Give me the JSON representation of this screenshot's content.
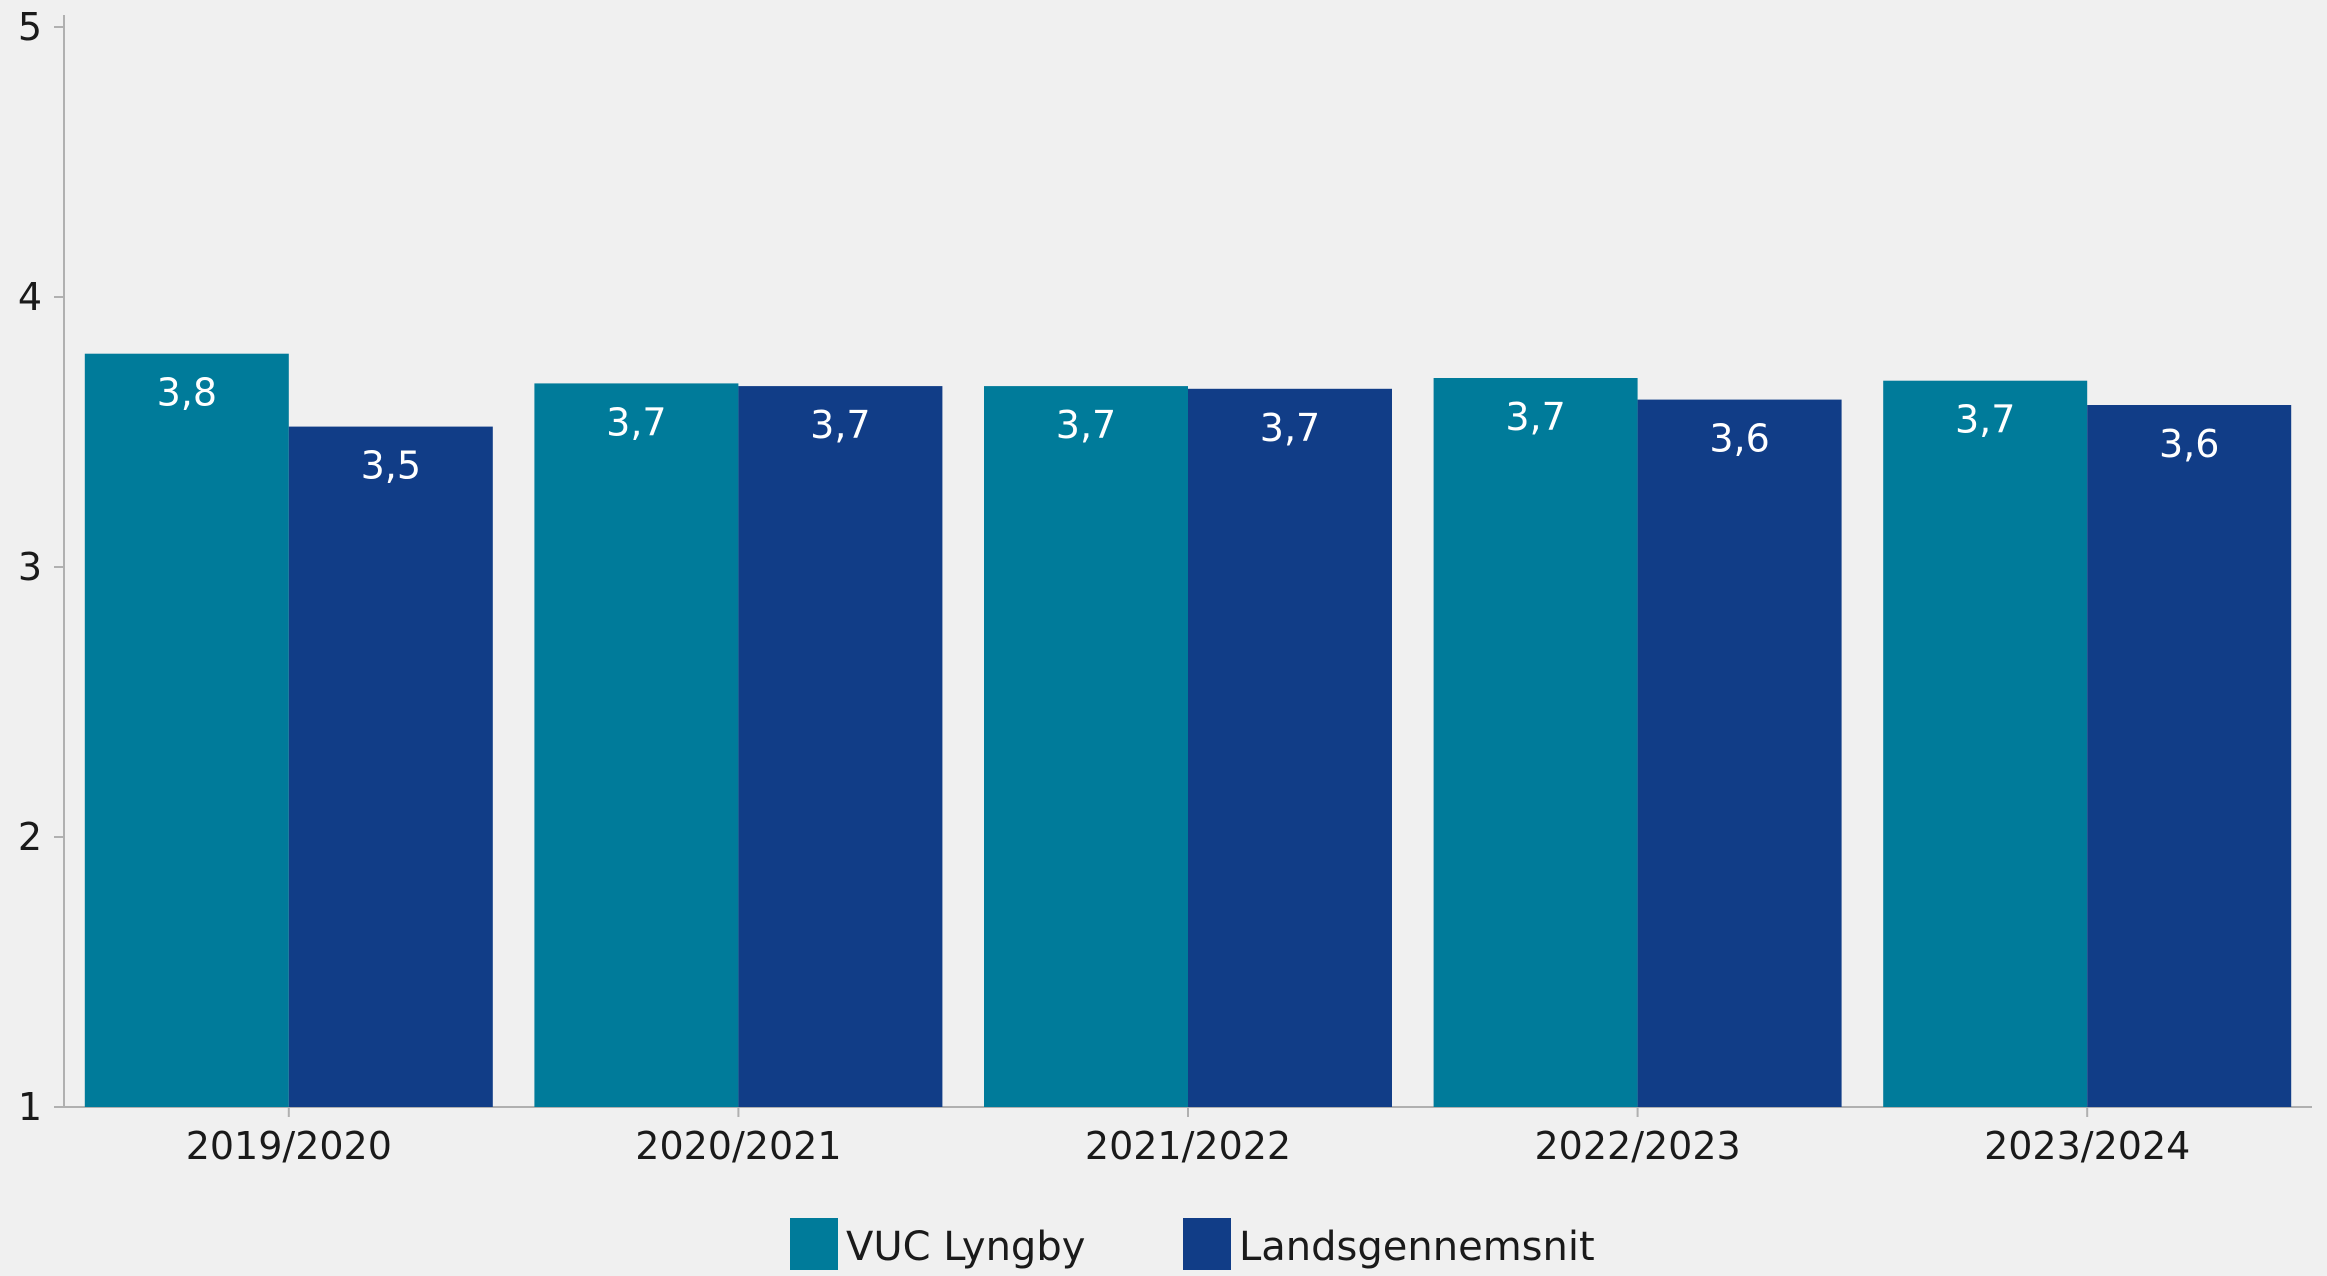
{
  "chart_data": {
    "type": "bar",
    "categories": [
      "2019/2020",
      "2020/2021",
      "2021/2022",
      "2022/2023",
      "2023/2024"
    ],
    "series": [
      {
        "name": "VUC Lyngby",
        "color": "#007b9a",
        "values": [
          3.79,
          3.68,
          3.67,
          3.7,
          3.69
        ],
        "labels": [
          "3,8",
          "3,7",
          "3,7",
          "3,7",
          "3,7"
        ]
      },
      {
        "name": "Landsgennemsnit",
        "color": "#113d87",
        "values": [
          3.52,
          3.67,
          3.66,
          3.62,
          3.6
        ],
        "labels": [
          "3,5",
          "3,7",
          "3,7",
          "3,6",
          "3,6"
        ]
      }
    ],
    "title": "",
    "xlabel": "",
    "ylabel": "",
    "ylim": [
      1,
      5
    ],
    "yticks": [
      "1",
      "2",
      "3",
      "4",
      "5"
    ],
    "grid": false,
    "legend_position": "bottom-center"
  }
}
